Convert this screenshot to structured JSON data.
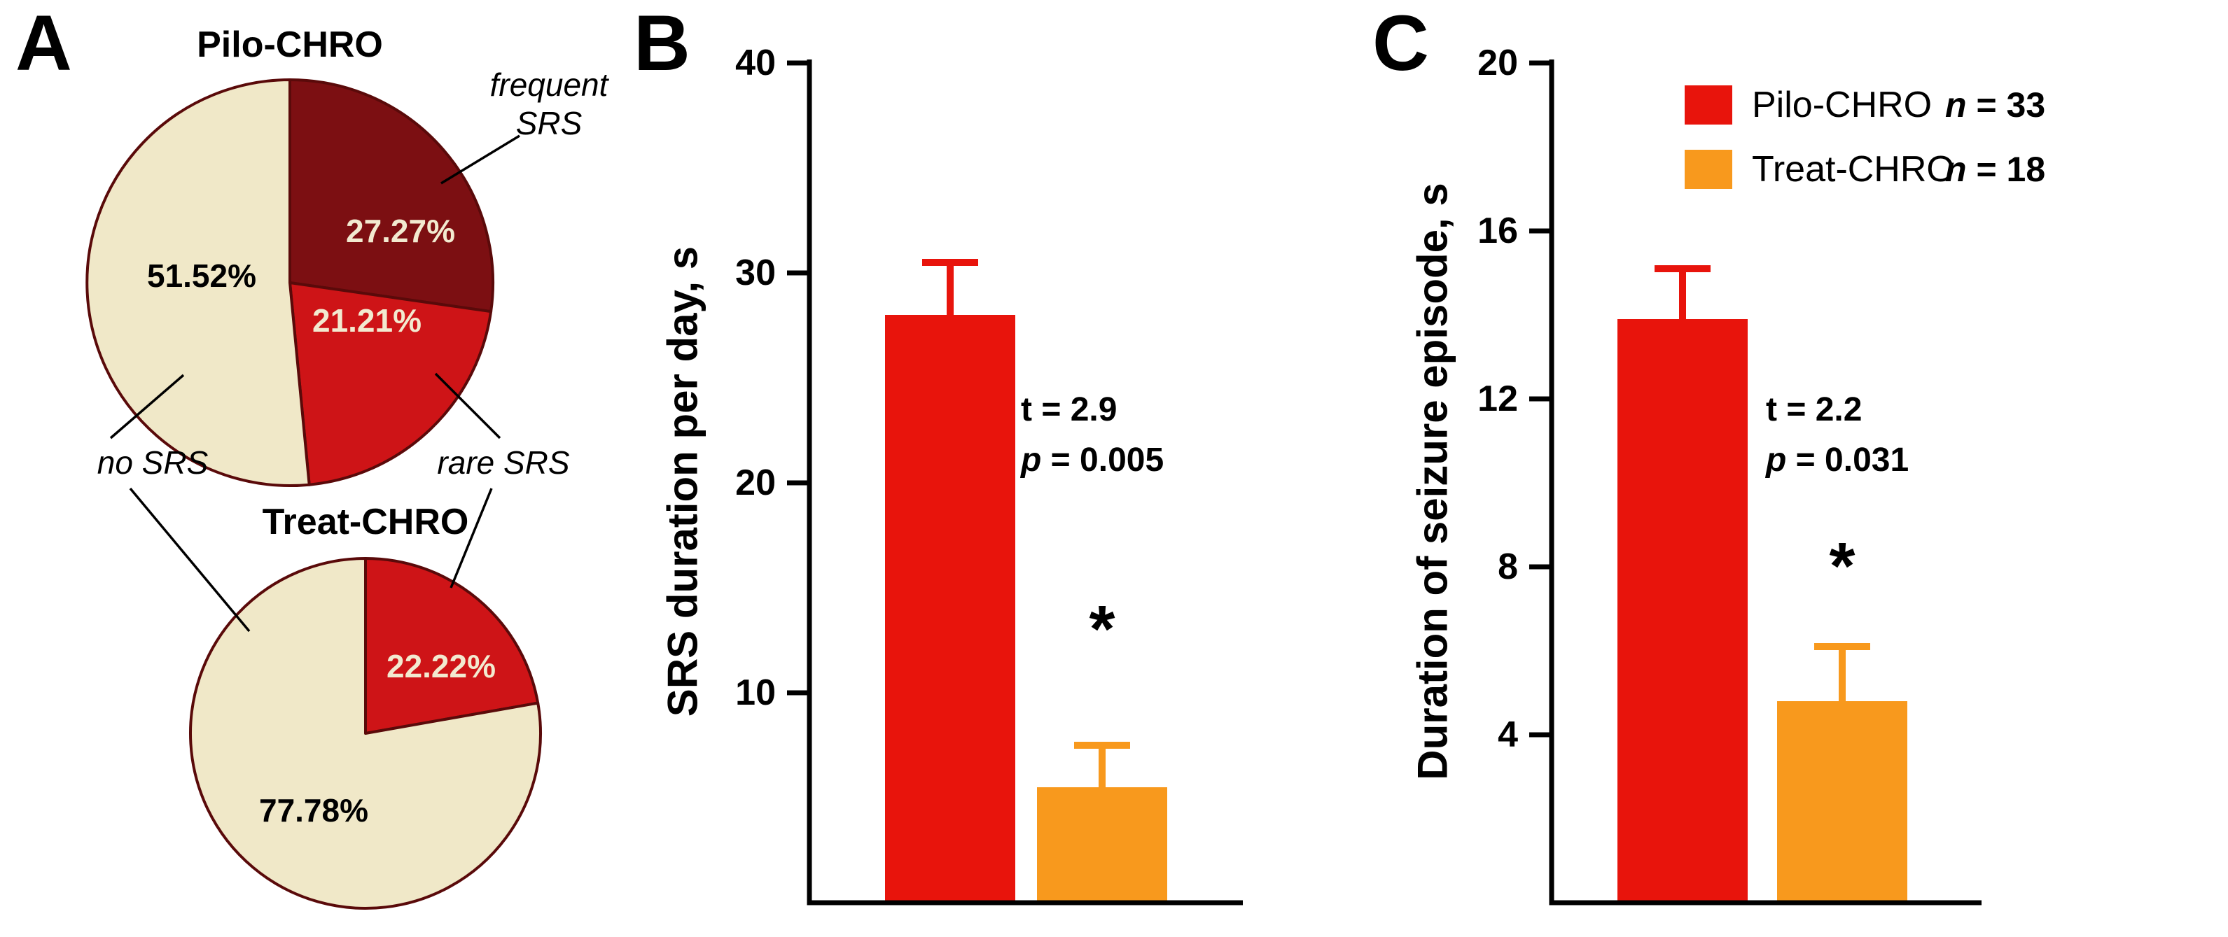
{
  "style": {
    "background": "#ffffff",
    "pie_stroke": "#5a0a0a",
    "axis_color": "#000000",
    "leader_line_color": "#000000",
    "pilo_color": "#e8140c",
    "treat_color": "#f8991d"
  },
  "panels": {
    "a": {
      "letter": "A",
      "callouts": {
        "frequent": "frequent SRS",
        "no_srs": "no SRS",
        "rare": "rare SRS"
      }
    },
    "b": {
      "letter": "B"
    },
    "c": {
      "letter": "C"
    }
  },
  "chart_data": [
    {
      "type": "pie",
      "title": "Pilo-CHRO",
      "slices": [
        {
          "label": "frequent SRS",
          "value": 27.27,
          "display": "27.27%",
          "color": "#7c0f12",
          "text_color": "#f2ead0"
        },
        {
          "label": "rare SRS",
          "value": 21.21,
          "display": "21.21%",
          "color": "#ce1417",
          "text_color": "#f2ead0"
        },
        {
          "label": "no SRS",
          "value": 51.52,
          "display": "51.52%",
          "color": "#f0e8c8",
          "text_color": "#000000"
        }
      ]
    },
    {
      "type": "pie",
      "title": "Treat-CHRO",
      "slices": [
        {
          "label": "rare SRS",
          "value": 22.22,
          "display": "22.22%",
          "color": "#ce1417",
          "text_color": "#f2ead0"
        },
        {
          "label": "no SRS",
          "value": 77.78,
          "display": "77.78%",
          "color": "#f0e8c8",
          "text_color": "#000000"
        }
      ]
    },
    {
      "type": "bar",
      "panel": "B",
      "ylabel": "SRS duration per day, s",
      "ylim": [
        0,
        40
      ],
      "yticks": [
        10,
        20,
        30,
        40
      ],
      "categories": [
        "Pilo-CHRO",
        "Treat-CHRO"
      ],
      "values": [
        28,
        5.5
      ],
      "errors": [
        2.5,
        2.0
      ],
      "colors": [
        "#e8140c",
        "#f8991d"
      ],
      "stats": {
        "t_sym": "t",
        "t_val": "= 2.9",
        "p_sym": "p",
        "p_val": "= 0.005"
      },
      "significance": "*"
    },
    {
      "type": "bar",
      "panel": "C",
      "ylabel": "Duration of seizure episode, s",
      "ylim": [
        0,
        20
      ],
      "yticks": [
        4,
        8,
        12,
        16,
        20
      ],
      "categories": [
        "Pilo-CHRO",
        "Treat-CHRO"
      ],
      "values": [
        13.9,
        4.8
      ],
      "errors": [
        1.2,
        1.3
      ],
      "colors": [
        "#e8140c",
        "#f8991d"
      ],
      "stats": {
        "t_sym": "t",
        "t_val": "= 2.2",
        "p_sym": "p",
        "p_val": "= 0.031"
      },
      "significance": "*",
      "legend": [
        {
          "name": "Pilo-CHRO",
          "n_sym": "n",
          "n_val": "= 33",
          "color": "#e8140c"
        },
        {
          "name": "Treat-CHRO",
          "n_sym": "n",
          "n_val": "= 18",
          "color": "#f8991d"
        }
      ]
    }
  ]
}
